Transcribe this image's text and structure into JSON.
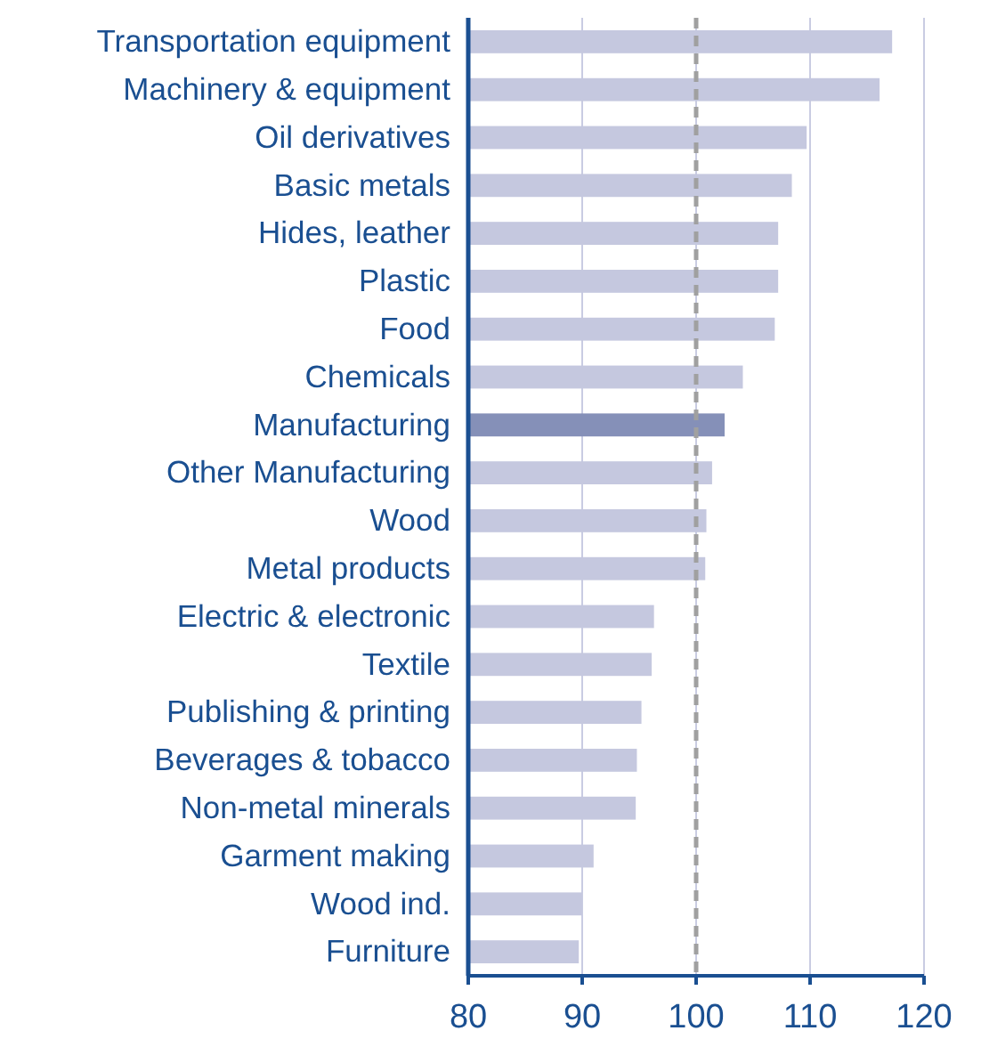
{
  "chart_data": {
    "type": "bar",
    "orientation": "horizontal",
    "categories": [
      "Transportation equipment",
      "Machinery & equipment",
      "Oil derivatives",
      "Basic metals",
      "Hides, leather",
      "Plastic",
      "Food",
      "Chemicals",
      "Manufacturing",
      "Other Manufacturing",
      "Wood",
      "Metal products",
      "Electric & electronic",
      "Textile",
      "Publishing & printing",
      "Beverages & tobacco",
      "Non-metal minerals",
      "Garment making",
      "Wood ind.",
      "Furniture"
    ],
    "values": [
      117.2,
      116.1,
      109.7,
      108.4,
      107.2,
      107.2,
      106.9,
      104.1,
      102.5,
      101.4,
      100.9,
      100.8,
      96.3,
      96.1,
      95.2,
      94.8,
      94.7,
      91.0,
      90.0,
      89.7
    ],
    "colors": [
      "#c5c8df",
      "#c5c8df",
      "#c5c8df",
      "#c5c8df",
      "#c5c8df",
      "#c5c8df",
      "#c5c8df",
      "#c5c8df",
      "#8590b8",
      "#c5c8df",
      "#c5c8df",
      "#c5c8df",
      "#c5c8df",
      "#c5c8df",
      "#c5c8df",
      "#c5c8df",
      "#c5c8df",
      "#c5c8df",
      "#c5c8df",
      "#c5c8df"
    ],
    "xlim": [
      80,
      120
    ],
    "xticks": [
      80,
      90,
      100,
      110,
      120
    ],
    "grid": "x",
    "ref_lines": [
      {
        "axis": "x",
        "value": 100,
        "color": "#a0a0a0",
        "line_style": "dashed"
      }
    ]
  }
}
